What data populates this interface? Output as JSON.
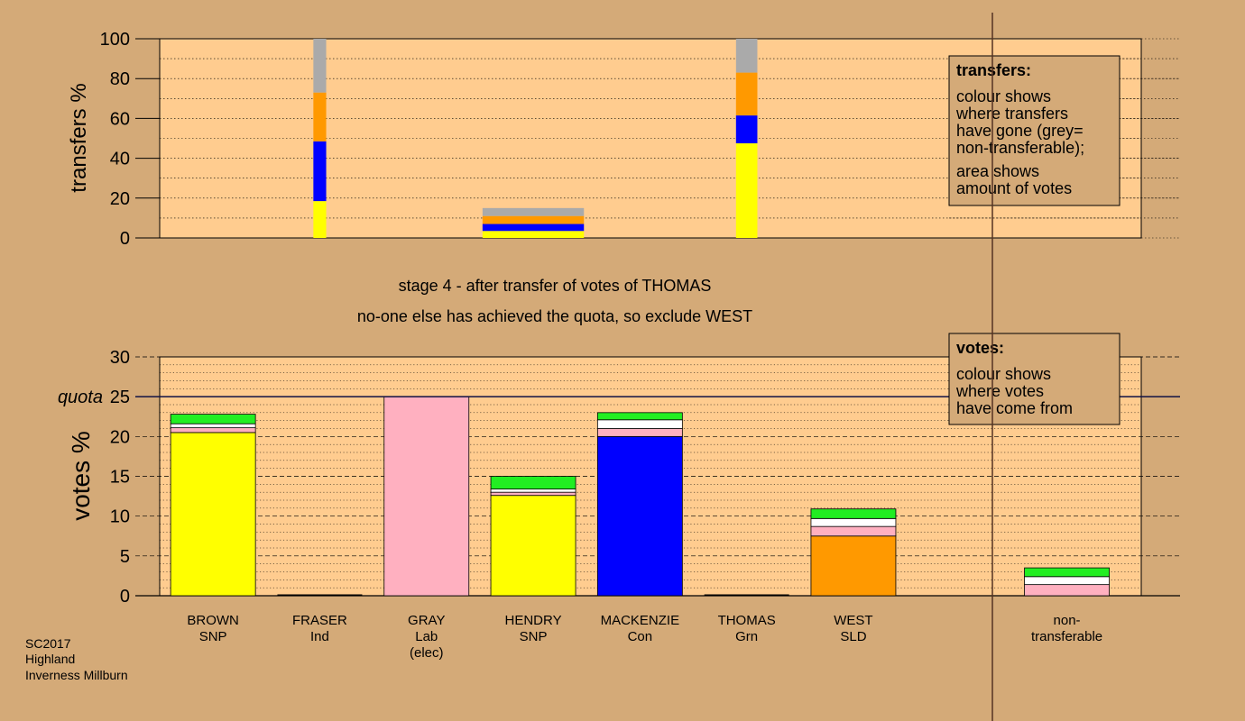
{
  "chart_data": [
    {
      "type": "bar",
      "stacked": true,
      "panel": "transfers",
      "ylabel": "transfers %",
      "ylim": [
        0,
        100
      ],
      "yticks": [
        0,
        20,
        40,
        60,
        80,
        100
      ],
      "legend": {
        "title": "transfers:",
        "lines1": [
          "colour shows",
          "where transfers",
          "have gone (grey=",
          "non-transferable);"
        ],
        "lines2": [
          "area shows",
          "amount of votes"
        ]
      },
      "bars": [
        {
          "name": "transfer-from-brown",
          "center": 1,
          "width": 0.12,
          "segments": [
            {
              "series": "SNP",
              "value": 18.5
            },
            {
              "series": "Con",
              "value": 30
            },
            {
              "series": "SLD",
              "value": 24.5
            },
            {
              "series": "non-transferable",
              "value": 27
            }
          ]
        },
        {
          "name": "transfer-from-gray",
          "center": 3,
          "width": 0.95,
          "segments": [
            {
              "series": "SNP",
              "value": 3.5
            },
            {
              "series": "Con",
              "value": 3.5
            },
            {
              "series": "SLD",
              "value": 4
            },
            {
              "series": "non-transferable",
              "value": 4
            }
          ]
        },
        {
          "name": "transfer-from-thomas",
          "center": 5,
          "width": 0.2,
          "segments": [
            {
              "series": "SNP",
              "value": 47.5
            },
            {
              "series": "Con",
              "value": 14
            },
            {
              "series": "SLD",
              "value": 21.5
            },
            {
              "series": "non-transferable",
              "value": 17
            }
          ]
        }
      ]
    },
    {
      "type": "bar",
      "stacked": true,
      "panel": "votes",
      "ylabel": "votes %",
      "ylim": [
        0,
        30
      ],
      "yticks": [
        0,
        5,
        10,
        15,
        20,
        25,
        30
      ],
      "quota": {
        "value": 25,
        "label": "quota"
      },
      "legend": {
        "title": "votes:",
        "lines": [
          "colour shows",
          "where votes",
          "have come from"
        ]
      },
      "categories": [
        {
          "name": "brown",
          "line1": "BROWN",
          "line2": "SNP",
          "line3": ""
        },
        {
          "name": "fraser",
          "line1": "FRASER",
          "line2": "Ind",
          "line3": ""
        },
        {
          "name": "gray",
          "line1": "GRAY",
          "line2": "Lab",
          "line3": "(elec)"
        },
        {
          "name": "hendry",
          "line1": "HENDRY",
          "line2": "SNP",
          "line3": ""
        },
        {
          "name": "mackenzie",
          "line1": "MACKENZIE",
          "line2": "Con",
          "line3": ""
        },
        {
          "name": "thomas",
          "line1": "THOMAS",
          "line2": "Grn",
          "line3": ""
        },
        {
          "name": "west",
          "line1": "WEST",
          "line2": "SLD",
          "line3": ""
        },
        {
          "name": "non-transferable",
          "line1": "non-",
          "line2": "transferable",
          "line3": ""
        }
      ],
      "bars": [
        {
          "category": "brown",
          "segments": [
            {
              "series": "SNP",
              "value": 20.5
            },
            {
              "series": "Lab",
              "value": 0.6
            },
            {
              "series": "Ind",
              "value": 0.5
            },
            {
              "series": "Grn",
              "value": 1.2
            }
          ]
        },
        {
          "category": "fraser",
          "segments": []
        },
        {
          "category": "gray",
          "segments": [
            {
              "series": "Lab",
              "value": 25
            }
          ]
        },
        {
          "category": "hendry",
          "segments": [
            {
              "series": "SNP",
              "value": 12.6
            },
            {
              "series": "Lab",
              "value": 0.4
            },
            {
              "series": "Ind",
              "value": 0.4
            },
            {
              "series": "Grn",
              "value": 1.6
            }
          ]
        },
        {
          "category": "mackenzie",
          "segments": [
            {
              "series": "Con",
              "value": 20
            },
            {
              "series": "Lab",
              "value": 1
            },
            {
              "series": "Ind",
              "value": 1.1
            },
            {
              "series": "Grn",
              "value": 0.9
            }
          ]
        },
        {
          "category": "thomas",
          "segments": []
        },
        {
          "category": "west",
          "segments": [
            {
              "series": "SLD",
              "value": 7.5
            },
            {
              "series": "Lab",
              "value": 1.2
            },
            {
              "series": "Ind",
              "value": 1
            },
            {
              "series": "Grn",
              "value": 1.2
            }
          ]
        },
        {
          "category": "non-transferable",
          "segments": [
            {
              "series": "Lab",
              "value": 1.4
            },
            {
              "series": "Ind",
              "value": 1
            },
            {
              "series": "Grn",
              "value": 1.1
            }
          ]
        }
      ]
    }
  ],
  "colors": {
    "SNP": "#ffff00",
    "Con": "#0000ff",
    "SLD": "#ff9900",
    "Lab": "#ffb0c0",
    "Ind": "#ffffff",
    "Grn": "#22ee22",
    "non-transferable": "#aaaaaa",
    "background": "#d4aa78",
    "plot_background": "#ffcc8f"
  },
  "stage": {
    "line1": "stage 4 - after transfer of votes of THOMAS",
    "line2": "no-one else has achieved the quota, so exclude WEST"
  },
  "footer": {
    "line1": "SC2017",
    "line2": "Highland",
    "line3": "Inverness Millburn"
  }
}
